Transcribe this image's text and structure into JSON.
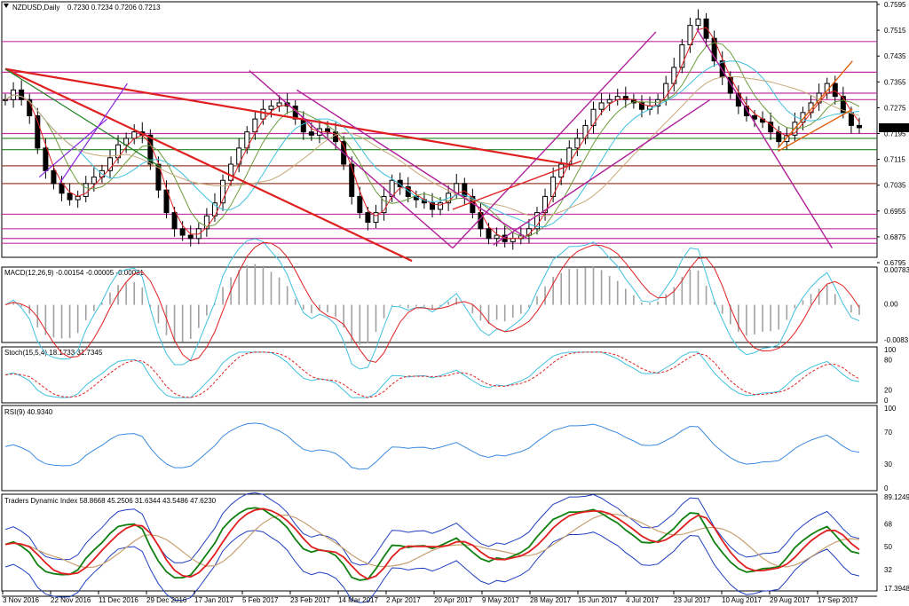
{
  "chart_data": {
    "type": "candlestick",
    "symbol_title": "NZDUSD,Daily",
    "ohlc_text": "0.7230 0.7234 0.7206 0.7213",
    "current_price": "0.7213",
    "date_labels": [
      "3 Nov 2016",
      "22 Nov 2016",
      "11 Dec 2016",
      "29 Dec 2016",
      "17 Jan 2017",
      "5 Feb 2017",
      "23 Feb 2017",
      "14 Mar 2017",
      "2 Apr 2017",
      "20 Apr 2017",
      "9 May 2017",
      "28 May 2017",
      "15 Jun 2017",
      "4 Jul 2017",
      "23 Jul 2017",
      "10 Aug 2017",
      "29 Aug 2017",
      "17 Sep 2017"
    ],
    "price_axis": [
      "0.7595",
      "0.7515",
      "0.7435",
      "0.7355",
      "0.7275",
      "0.7195",
      "0.7115",
      "0.7035",
      "0.6955",
      "0.6875",
      "0.6795"
    ],
    "price_range": [
      0.6795,
      0.7595
    ],
    "close_path": [
      0.73,
      0.733,
      0.73,
      0.725,
      0.715,
      0.708,
      0.704,
      0.701,
      0.699,
      0.7,
      0.704,
      0.706,
      0.708,
      0.712,
      0.716,
      0.718,
      0.72,
      0.719,
      0.71,
      0.702,
      0.695,
      0.69,
      0.688,
      0.687,
      0.69,
      0.694,
      0.698,
      0.705,
      0.71,
      0.715,
      0.72,
      0.724,
      0.727,
      0.728,
      0.729,
      0.728,
      0.724,
      0.72,
      0.719,
      0.721,
      0.72,
      0.717,
      0.71,
      0.7,
      0.695,
      0.692,
      0.695,
      0.7,
      0.705,
      0.703,
      0.7,
      0.699,
      0.698,
      0.696,
      0.698,
      0.701,
      0.704,
      0.7,
      0.695,
      0.69,
      0.687,
      0.688,
      0.686,
      0.687,
      0.688,
      0.69,
      0.695,
      0.7,
      0.706,
      0.71,
      0.715,
      0.718,
      0.722,
      0.727,
      0.729,
      0.73,
      0.731,
      0.73,
      0.729,
      0.727,
      0.728,
      0.73,
      0.735,
      0.74,
      0.747,
      0.753,
      0.755,
      0.749,
      0.742,
      0.737,
      0.732,
      0.728,
      0.725,
      0.724,
      0.723,
      0.72,
      0.717,
      0.719,
      0.723,
      0.726,
      0.729,
      0.732,
      0.735,
      0.731,
      0.726,
      0.722,
      0.7213
    ],
    "horizontal_levels": [
      0.748,
      0.7385,
      0.732,
      0.73,
      0.7195,
      0.718,
      0.7145,
      0.7095,
      0.704,
      0.6945,
      0.69,
      0.687,
      0.6855
    ],
    "macd": {
      "title": "MACD(12,26,9) -0.00154 -0.00005 -0.00081",
      "axis": [
        "0.00783",
        "0.00",
        "-0.0083"
      ],
      "range": [
        -0.0083,
        0.00783
      ]
    },
    "stoch": {
      "title": "Stoch(15,5,4) 18.1733 31.7345",
      "axis": [
        "100",
        "80",
        "20",
        "0"
      ],
      "range": [
        0,
        100
      ]
    },
    "rsi": {
      "title": "RSI(9) 40.9340",
      "axis": [
        "100",
        "70",
        "30",
        "0"
      ],
      "range": [
        0,
        100
      ]
    },
    "tdi": {
      "title": "Traders Dynamic Index 58.8668 45.2506 31.6344 43.5486 47.6230",
      "axis": [
        "89.1249",
        "68",
        "50",
        "32",
        "17.3948"
      ],
      "range": [
        17.3948,
        89.1249
      ]
    },
    "colors": {
      "bull": "#000000",
      "ma_red": "#e02020",
      "ma_cyan": "#40c0e0",
      "ma_tan": "#c8a878",
      "ma_olive": "#6a9a3a",
      "trend_magenta": "#b0209a",
      "trend_red": "#e02020",
      "trend_green": "#208020",
      "trend_purple": "#8a2ae0",
      "trend_orange": "#e06010",
      "level_magenta": "#c030a0",
      "level_dark": "#9a4030",
      "macd_hist": "#a0a0a0",
      "signal_red": "#e02020",
      "macd_blue": "#40c0e0",
      "rsi_blue": "#3a8ae0",
      "tdi_green": "#108010",
      "tdi_red": "#e02020",
      "tdi_blue": "#2040c0",
      "tdi_tan": "#c8a070"
    }
  }
}
